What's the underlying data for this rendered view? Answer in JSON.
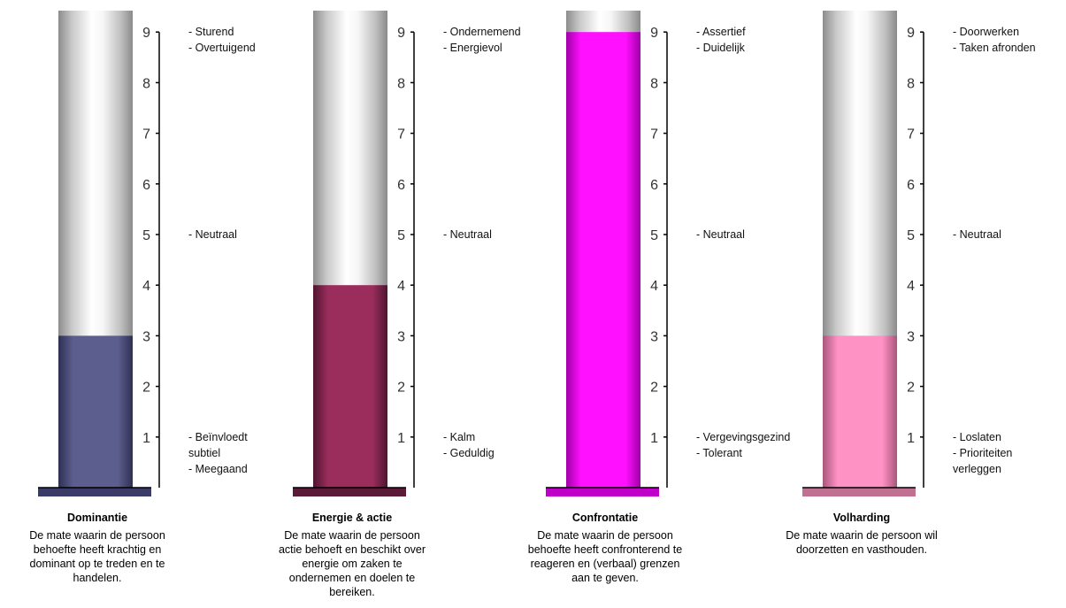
{
  "chart_data": [
    {
      "type": "bar",
      "title": "Dominantie",
      "description": [
        "De mate waarin de persoon",
        "behoefte heeft krachtig en",
        "dominant op te treden en te",
        "handelen."
      ],
      "value": 3,
      "ylim": [
        0,
        9
      ],
      "ticks": [
        1,
        2,
        3,
        4,
        5,
        6,
        7,
        8,
        9
      ],
      "fill_color": "#5c5f8e",
      "fill_edge": "#2e2f52",
      "base_color": "#3a3b66",
      "labels": [
        {
          "at": 9,
          "lines": [
            "- Sturend",
            "- Overtuigend"
          ]
        },
        {
          "at": 5,
          "lines": [
            "- Neutraal"
          ]
        },
        {
          "at": 1,
          "lines": [
            "- Beïnvloedt",
            "  subtiel",
            "- Meegaand"
          ]
        }
      ]
    },
    {
      "type": "bar",
      "title": "Energie & actie",
      "description": [
        "De mate waarin de persoon",
        "actie behoeft en beschikt over",
        "energie om zaken te",
        "ondernemen en doelen te",
        "bereiken."
      ],
      "value": 4,
      "ylim": [
        0,
        9
      ],
      "ticks": [
        1,
        2,
        3,
        4,
        5,
        6,
        7,
        8,
        9
      ],
      "fill_color": "#9a2d5c",
      "fill_edge": "#4f1530",
      "base_color": "#5a1a38",
      "labels": [
        {
          "at": 9,
          "lines": [
            "- Ondernemend",
            "- Energievol"
          ]
        },
        {
          "at": 5,
          "lines": [
            "- Neutraal"
          ]
        },
        {
          "at": 1,
          "lines": [
            "- Kalm",
            "- Geduldig"
          ]
        }
      ]
    },
    {
      "type": "bar",
      "title": "Confrontatie",
      "description": [
        "De mate waarin de persoon",
        "behoefte heeft confronterend te",
        "reageren en (verbaal) grenzen",
        "aan te geven."
      ],
      "value": 9,
      "ylim": [
        0,
        9
      ],
      "ticks": [
        1,
        2,
        3,
        4,
        5,
        6,
        7,
        8,
        9
      ],
      "fill_color": "#ff10ff",
      "fill_edge": "#a000a8",
      "base_color": "#c000c8",
      "labels": [
        {
          "at": 9,
          "lines": [
            "- Assertief",
            "- Duidelijk"
          ]
        },
        {
          "at": 5,
          "lines": [
            "- Neutraal"
          ]
        },
        {
          "at": 1,
          "lines": [
            "- Vergevingsgezind",
            "- Tolerant"
          ]
        }
      ]
    },
    {
      "type": "bar",
      "title": "Volharding",
      "description": [
        "De mate waarin de persoon wil",
        "doorzetten en vasthouden."
      ],
      "value": 3,
      "ylim": [
        0,
        9
      ],
      "ticks": [
        1,
        2,
        3,
        4,
        5,
        6,
        7,
        8,
        9
      ],
      "fill_color": "#ff92c4",
      "fill_edge": "#a8567c",
      "base_color": "#c07090",
      "labels": [
        {
          "at": 9,
          "lines": [
            "- Doorwerken",
            "- Taken afronden"
          ]
        },
        {
          "at": 5,
          "lines": [
            "- Neutraal"
          ]
        },
        {
          "at": 1,
          "lines": [
            "- Loslaten",
            "- Prioriteiten",
            "  verleggen"
          ]
        }
      ]
    }
  ]
}
